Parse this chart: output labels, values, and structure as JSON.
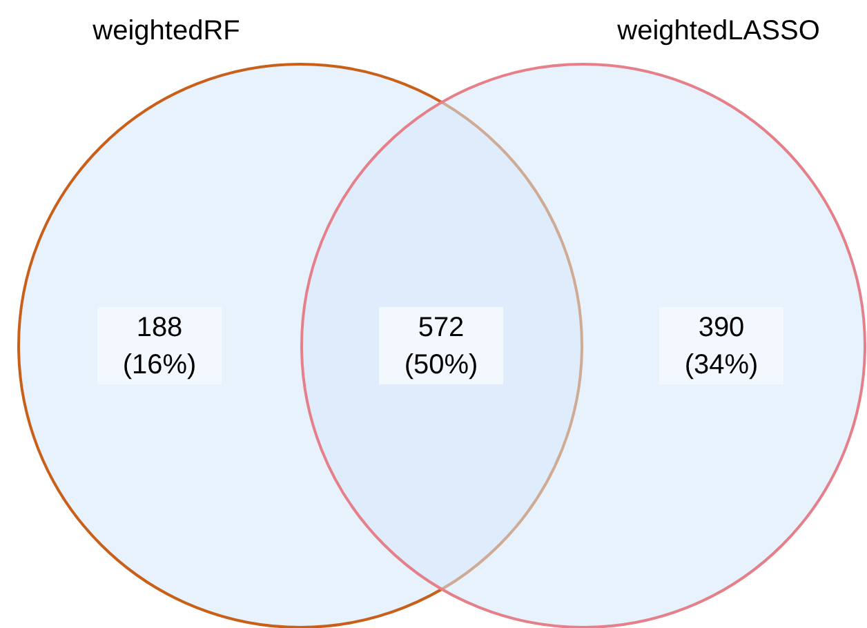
{
  "chart_data": {
    "type": "other",
    "categories": [
      null,
      null,
      null
    ],
    "values": [
      188,
      572,
      390
    ],
    "data_labels": true,
    "annotations": [
      "weightedRF",
      "weightedLASSO",
      "(16%)",
      "(50%)",
      "(34%)"
    ]
  }
}
